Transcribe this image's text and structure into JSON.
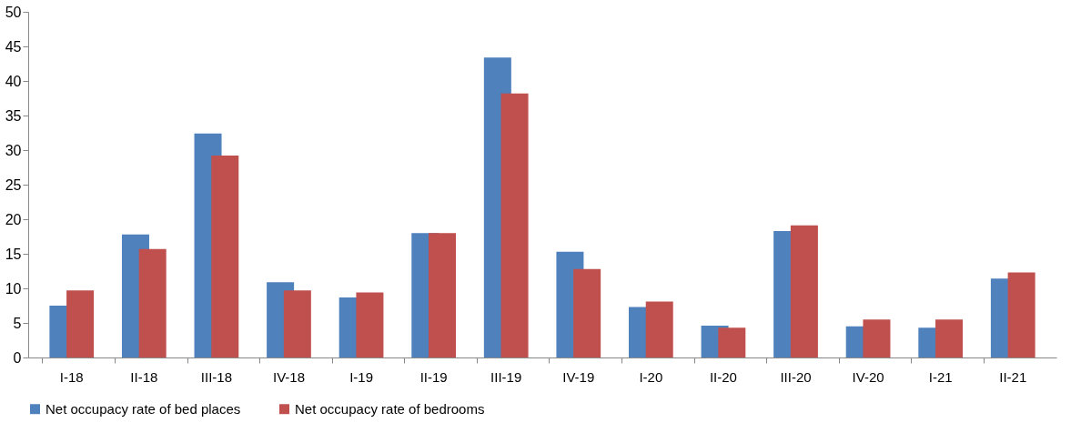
{
  "chart_data": {
    "type": "bar",
    "categories": [
      "I-18",
      "II-18",
      "III-18",
      "IV-18",
      "I-19",
      "II-19",
      "III-19",
      "IV-19",
      "I-20",
      "II-20",
      "III-20",
      "IV-20",
      "I-21",
      "II-21"
    ],
    "series": [
      {
        "name": "Net occupacy rate of bed places",
        "color": "#4f81bd",
        "values": [
          7.5,
          17.8,
          32.4,
          10.9,
          8.7,
          18.0,
          43.4,
          15.3,
          7.3,
          4.6,
          18.3,
          4.5,
          4.3,
          11.4
        ]
      },
      {
        "name": "Net occupacy rate of bedrooms",
        "color": "#c0504d",
        "values": [
          9.7,
          15.7,
          29.2,
          9.7,
          9.4,
          18.0,
          38.2,
          12.8,
          8.1,
          4.3,
          19.1,
          5.5,
          5.5,
          12.3
        ]
      }
    ],
    "ylim": [
      0,
      50
    ],
    "yticks": [
      0,
      5,
      10,
      15,
      20,
      25,
      30,
      35,
      40,
      45,
      50
    ],
    "grid": false,
    "legend": "bottom"
  }
}
